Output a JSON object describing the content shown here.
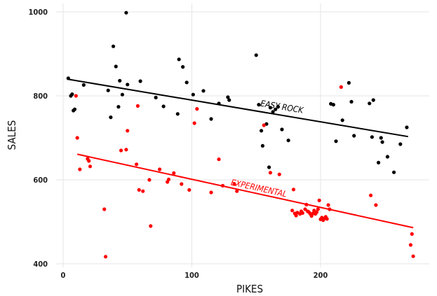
{
  "chart_data": {
    "type": "scatter",
    "xlabel": "PIKES",
    "ylabel": "SALES",
    "xlim": [
      0,
      275
    ],
    "ylim": [
      400,
      1000
    ],
    "xticks": [
      0,
      100,
      200
    ],
    "yticks": [
      400,
      600,
      800,
      1000
    ],
    "grid": true,
    "series": [
      {
        "name": "EASY ROCK",
        "color": "#000000",
        "points": [
          [
            4,
            842
          ],
          [
            6,
            800
          ],
          [
            7,
            804
          ],
          [
            8,
            765
          ],
          [
            9,
            768
          ],
          [
            16,
            826
          ],
          [
            35,
            813
          ],
          [
            37,
            749
          ],
          [
            39,
            918
          ],
          [
            41,
            870
          ],
          [
            43,
            774
          ],
          [
            44,
            836
          ],
          [
            46,
            803
          ],
          [
            49,
            998
          ],
          [
            50,
            827
          ],
          [
            60,
            835
          ],
          [
            72,
            796
          ],
          [
            78,
            775
          ],
          [
            89,
            757
          ],
          [
            90,
            887
          ],
          [
            93,
            869
          ],
          [
            96,
            832
          ],
          [
            101,
            803
          ],
          [
            109,
            812
          ],
          [
            115,
            745
          ],
          [
            121,
            782
          ],
          [
            128,
            797
          ],
          [
            129,
            790
          ],
          [
            150,
            897
          ],
          [
            152,
            779
          ],
          [
            154,
            717
          ],
          [
            155,
            681
          ],
          [
            158,
            733
          ],
          [
            160,
            630
          ],
          [
            161,
            772
          ],
          [
            163,
            762
          ],
          [
            165,
            768
          ],
          [
            167,
            774
          ],
          [
            170,
            720
          ],
          [
            175,
            694
          ],
          [
            208,
            781
          ],
          [
            210,
            779
          ],
          [
            212,
            692
          ],
          [
            217,
            742
          ],
          [
            222,
            831
          ],
          [
            224,
            786
          ],
          [
            226,
            705
          ],
          [
            238,
            782
          ],
          [
            240,
            702
          ],
          [
            241,
            790
          ],
          [
            245,
            641
          ],
          [
            247,
            700
          ],
          [
            248,
            690
          ],
          [
            252,
            655
          ],
          [
            257,
            618
          ],
          [
            262,
            685
          ],
          [
            267,
            725
          ]
        ],
        "trend": [
          [
            3,
            840
          ],
          [
            268,
            703
          ]
        ]
      },
      {
        "name": "EXPERIMENTAL",
        "color": "#ff0000",
        "points": [
          [
            10,
            800
          ],
          [
            11,
            700
          ],
          [
            13,
            625
          ],
          [
            19,
            650
          ],
          [
            20,
            645
          ],
          [
            21,
            632
          ],
          [
            32,
            530
          ],
          [
            33,
            417
          ],
          [
            45,
            670
          ],
          [
            49,
            672
          ],
          [
            50,
            717
          ],
          [
            57,
            637
          ],
          [
            58,
            776
          ],
          [
            59,
            576
          ],
          [
            62,
            573
          ],
          [
            67,
            600
          ],
          [
            68,
            490
          ],
          [
            75,
            625
          ],
          [
            81,
            595
          ],
          [
            82,
            601
          ],
          [
            86,
            616
          ],
          [
            92,
            590
          ],
          [
            98,
            576
          ],
          [
            102,
            735
          ],
          [
            104,
            769
          ],
          [
            115,
            570
          ],
          [
            121,
            649
          ],
          [
            124,
            586
          ],
          [
            133,
            590
          ],
          [
            135,
            573
          ],
          [
            156,
            730
          ],
          [
            161,
            617
          ],
          [
            168,
            613
          ],
          [
            178,
            527
          ],
          [
            179,
            577
          ],
          [
            180,
            520
          ],
          [
            181,
            515
          ],
          [
            182,
            522
          ],
          [
            184,
            519
          ],
          [
            185,
            525
          ],
          [
            186,
            521
          ],
          [
            188,
            530
          ],
          [
            189,
            541
          ],
          [
            190,
            525
          ],
          [
            191,
            523
          ],
          [
            192,
            519
          ],
          [
            193,
            514
          ],
          [
            194,
            520
          ],
          [
            195,
            527
          ],
          [
            196,
            519
          ],
          [
            197,
            523
          ],
          [
            198,
            530
          ],
          [
            199,
            551
          ],
          [
            200,
            506
          ],
          [
            201,
            510
          ],
          [
            202,
            504
          ],
          [
            203,
            508
          ],
          [
            204,
            512
          ],
          [
            205,
            507
          ],
          [
            206,
            540
          ],
          [
            207,
            530
          ],
          [
            216,
            821
          ],
          [
            239,
            563
          ],
          [
            243,
            540
          ],
          [
            270,
            445
          ],
          [
            271,
            471
          ],
          [
            272,
            418
          ]
        ],
        "trend": [
          [
            11,
            661
          ],
          [
            272,
            486
          ]
        ]
      }
    ],
    "annotations": [
      {
        "text": "EASY ROCK",
        "series": 0
      },
      {
        "text": "EXPERIMENTAL",
        "series": 1
      }
    ]
  }
}
